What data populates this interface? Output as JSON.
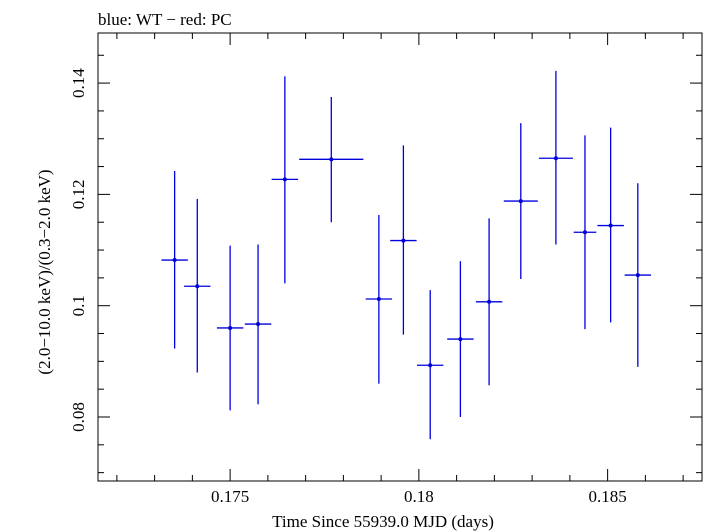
{
  "chart_data": {
    "type": "scatter",
    "title": "blue: WT − red: PC",
    "xlabel": "Time Since 55939.0 MJD (days)",
    "ylabel": "(2.0−10.0 keV)/(0.3−2.0 keV)",
    "xlim": [
      0.1715,
      0.1875
    ],
    "ylim": [
      0.0685,
      0.149
    ],
    "xticks": [
      {
        "value": 0.175,
        "label": "0.175"
      },
      {
        "value": 0.18,
        "label": "0.18"
      },
      {
        "value": 0.185,
        "label": "0.185"
      }
    ],
    "yticks": [
      {
        "value": 0.08,
        "label": "0.08"
      },
      {
        "value": 0.1,
        "label": "0.1"
      },
      {
        "value": 0.12,
        "label": "0.12"
      },
      {
        "value": 0.14,
        "label": "0.14"
      }
    ],
    "grid": false,
    "series": [
      {
        "color": "#0000dd",
        "points": [
          {
            "x": 0.17353,
            "xerr": 0.00035,
            "y": 0.1082,
            "ylo": 0.0923,
            "yhi": 0.1242
          },
          {
            "x": 0.17413,
            "xerr": 0.00035,
            "y": 0.1035,
            "ylo": 0.088,
            "yhi": 0.1192
          },
          {
            "x": 0.175,
            "xerr": 0.00035,
            "y": 0.096,
            "ylo": 0.0812,
            "yhi": 0.1108
          },
          {
            "x": 0.17574,
            "xerr": 0.00035,
            "y": 0.0967,
            "ylo": 0.0823,
            "yhi": 0.111
          },
          {
            "x": 0.17645,
            "xerr": 0.00035,
            "y": 0.1227,
            "ylo": 0.104,
            "yhi": 0.1412
          },
          {
            "x": 0.17768,
            "xerr": 0.00085,
            "y": 0.1263,
            "ylo": 0.115,
            "yhi": 0.1375
          },
          {
            "x": 0.17894,
            "xerr": 0.00035,
            "y": 0.1012,
            "ylo": 0.086,
            "yhi": 0.1163
          },
          {
            "x": 0.17959,
            "xerr": 0.00035,
            "y": 0.1117,
            "ylo": 0.0948,
            "yhi": 0.1288
          },
          {
            "x": 0.1803,
            "xerr": 0.00035,
            "y": 0.0893,
            "ylo": 0.076,
            "yhi": 0.1028
          },
          {
            "x": 0.1811,
            "xerr": 0.00035,
            "y": 0.094,
            "ylo": 0.08,
            "yhi": 0.108
          },
          {
            "x": 0.18186,
            "xerr": 0.00035,
            "y": 0.1007,
            "ylo": 0.0857,
            "yhi": 0.1157
          },
          {
            "x": 0.1827,
            "xerr": 0.00045,
            "y": 0.1188,
            "ylo": 0.1048,
            "yhi": 0.1328
          },
          {
            "x": 0.18363,
            "xerr": 0.00045,
            "y": 0.1265,
            "ylo": 0.111,
            "yhi": 0.1422
          },
          {
            "x": 0.1844,
            "xerr": 0.0003,
            "y": 0.1132,
            "ylo": 0.0958,
            "yhi": 0.1306
          },
          {
            "x": 0.18508,
            "xerr": 0.00035,
            "y": 0.1144,
            "ylo": 0.097,
            "yhi": 0.132
          },
          {
            "x": 0.1858,
            "xerr": 0.00035,
            "y": 0.1055,
            "ylo": 0.089,
            "yhi": 0.122
          }
        ]
      }
    ]
  }
}
